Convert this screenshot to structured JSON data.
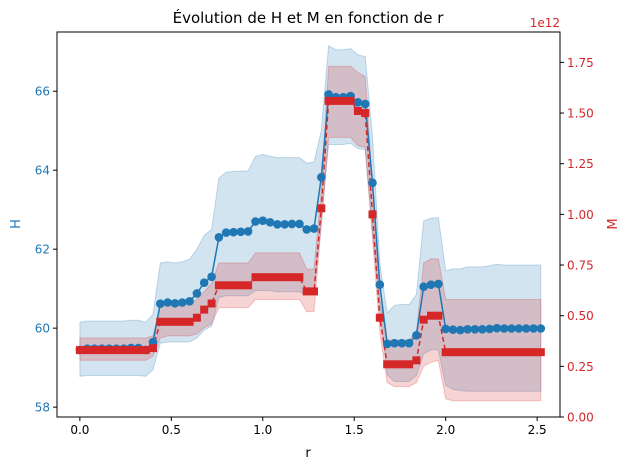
{
  "chart_data": {
    "type": "line",
    "title": "Évolution de H et M en fonction de r",
    "xlabel": "r",
    "xlim": [
      -0.125,
      2.625
    ],
    "xticks": [
      "0.0",
      "0.5",
      "1.0",
      "1.5",
      "2.0",
      "2.5"
    ],
    "xtick_values": [
      0,
      0.5,
      1.0,
      1.5,
      2.0,
      2.5
    ],
    "x": [
      0.0,
      0.04,
      0.08,
      0.12,
      0.16,
      0.2,
      0.24,
      0.28,
      0.32,
      0.36,
      0.4,
      0.44,
      0.48,
      0.52,
      0.56,
      0.6,
      0.64,
      0.68,
      0.72,
      0.76,
      0.8,
      0.84,
      0.88,
      0.92,
      0.96,
      1.0,
      1.04,
      1.08,
      1.12,
      1.16,
      1.2,
      1.24,
      1.28,
      1.32,
      1.36,
      1.4,
      1.44,
      1.48,
      1.52,
      1.56,
      1.6,
      1.64,
      1.68,
      1.72,
      1.76,
      1.8,
      1.84,
      1.88,
      1.92,
      1.96,
      2.0,
      2.04,
      2.08,
      2.12,
      2.16,
      2.2,
      2.24,
      2.28,
      2.32,
      2.36,
      2.4,
      2.44,
      2.48,
      2.52
    ],
    "left_axis": {
      "label": "H",
      "color": "#1f77b4",
      "ylim": [
        57.75,
        67.5
      ],
      "ticks": [
        "58",
        "60",
        "62",
        "64",
        "66"
      ],
      "tick_values": [
        58,
        60,
        62,
        64,
        66
      ]
    },
    "right_axis": {
      "label": "M",
      "color": "#d62728",
      "ylim": [
        0,
        1.9
      ],
      "offset_text": "1e12",
      "ticks": [
        "0.00",
        "0.25",
        "0.50",
        "0.75",
        "1.00",
        "1.25",
        "1.50",
        "1.75"
      ],
      "tick_values": [
        0,
        0.25,
        0.5,
        0.75,
        1.0,
        1.25,
        1.5,
        1.75
      ]
    },
    "series": [
      {
        "axis": "left",
        "color": "#1f77b4",
        "line_style": "solid",
        "marker": "circle",
        "values": [
          59.45,
          59.48,
          59.48,
          59.48,
          59.48,
          59.48,
          59.48,
          59.5,
          59.5,
          59.45,
          59.65,
          60.62,
          60.65,
          60.63,
          60.65,
          60.68,
          60.88,
          61.15,
          61.3,
          62.3,
          62.42,
          62.43,
          62.44,
          62.45,
          62.7,
          62.72,
          62.68,
          62.63,
          62.63,
          62.64,
          62.64,
          62.5,
          62.52,
          63.82,
          65.92,
          65.85,
          65.85,
          65.88,
          65.72,
          65.68,
          63.68,
          61.1,
          59.6,
          59.62,
          59.62,
          59.62,
          59.82,
          61.05,
          61.1,
          61.12,
          59.98,
          59.96,
          59.95,
          59.97,
          59.97,
          59.97,
          59.98,
          60.0,
          59.99,
          59.99,
          59.99,
          59.99,
          59.99,
          59.99
        ],
        "band_lower": [
          58.78,
          58.8,
          58.8,
          58.8,
          58.8,
          58.8,
          58.8,
          58.8,
          58.8,
          58.78,
          58.95,
          59.62,
          59.65,
          59.65,
          59.65,
          59.65,
          59.75,
          59.95,
          60.05,
          60.78,
          60.82,
          60.82,
          60.82,
          60.82,
          60.95,
          60.95,
          60.95,
          60.92,
          60.92,
          60.92,
          60.92,
          60.85,
          60.88,
          62.65,
          64.65,
          64.65,
          64.65,
          64.68,
          64.55,
          64.52,
          62.45,
          60.55,
          58.82,
          58.65,
          58.65,
          58.65,
          58.8,
          59.35,
          59.45,
          59.45,
          58.55,
          58.45,
          58.42,
          58.4,
          58.4,
          58.4,
          58.4,
          58.4,
          58.4,
          58.4,
          58.4,
          58.4,
          58.4,
          58.4
        ],
        "band_upper": [
          60.15,
          60.18,
          60.18,
          60.18,
          60.18,
          60.18,
          60.18,
          60.2,
          60.2,
          60.15,
          60.35,
          61.65,
          61.68,
          61.65,
          61.68,
          61.75,
          62.0,
          62.35,
          62.5,
          63.8,
          63.95,
          63.97,
          63.98,
          63.98,
          64.35,
          64.4,
          64.35,
          64.32,
          64.32,
          64.32,
          64.32,
          64.18,
          64.2,
          65.0,
          67.15,
          67.05,
          67.05,
          67.08,
          66.92,
          66.88,
          64.85,
          61.65,
          60.38,
          60.58,
          60.6,
          60.6,
          60.85,
          62.72,
          62.78,
          62.8,
          61.45,
          61.5,
          61.5,
          61.55,
          61.55,
          61.55,
          61.58,
          61.62,
          61.6,
          61.6,
          61.6,
          61.6,
          61.6,
          61.6
        ]
      },
      {
        "axis": "right",
        "color": "#d62728",
        "line_style": "dashed",
        "marker": "square",
        "values": [
          0.33,
          0.33,
          0.33,
          0.33,
          0.33,
          0.33,
          0.33,
          0.33,
          0.33,
          0.33,
          0.34,
          0.47,
          0.47,
          0.47,
          0.47,
          0.47,
          0.49,
          0.53,
          0.56,
          0.65,
          0.65,
          0.65,
          0.65,
          0.65,
          0.69,
          0.69,
          0.69,
          0.69,
          0.69,
          0.69,
          0.69,
          0.62,
          0.62,
          1.03,
          1.56,
          1.56,
          1.56,
          1.56,
          1.51,
          1.5,
          1.0,
          0.49,
          0.26,
          0.26,
          0.26,
          0.26,
          0.28,
          0.48,
          0.5,
          0.5,
          0.32,
          0.32,
          0.32,
          0.32,
          0.32,
          0.32,
          0.32,
          0.32,
          0.32,
          0.32,
          0.32,
          0.32,
          0.32,
          0.32
        ],
        "band_lower": [
          0.28,
          0.28,
          0.28,
          0.28,
          0.28,
          0.28,
          0.28,
          0.28,
          0.28,
          0.28,
          0.3,
          0.39,
          0.4,
          0.4,
          0.4,
          0.4,
          0.41,
          0.44,
          0.46,
          0.54,
          0.54,
          0.54,
          0.54,
          0.54,
          0.58,
          0.58,
          0.58,
          0.58,
          0.58,
          0.58,
          0.58,
          0.52,
          0.52,
          0.95,
          1.38,
          1.38,
          1.38,
          1.38,
          1.34,
          1.33,
          0.88,
          0.42,
          0.17,
          0.15,
          0.15,
          0.15,
          0.17,
          0.25,
          0.27,
          0.28,
          0.09,
          0.08,
          0.08,
          0.08,
          0.08,
          0.08,
          0.08,
          0.08,
          0.08,
          0.08,
          0.08,
          0.08,
          0.08,
          0.08
        ],
        "band_upper": [
          0.39,
          0.39,
          0.39,
          0.39,
          0.39,
          0.39,
          0.39,
          0.39,
          0.39,
          0.39,
          0.4,
          0.55,
          0.55,
          0.55,
          0.55,
          0.56,
          0.58,
          0.62,
          0.66,
          0.76,
          0.76,
          0.76,
          0.76,
          0.76,
          0.81,
          0.81,
          0.81,
          0.81,
          0.81,
          0.81,
          0.81,
          0.73,
          0.73,
          1.12,
          1.73,
          1.73,
          1.73,
          1.73,
          1.7,
          1.68,
          1.14,
          0.58,
          0.38,
          0.38,
          0.38,
          0.38,
          0.42,
          0.76,
          0.78,
          0.78,
          0.58,
          0.58,
          0.58,
          0.58,
          0.58,
          0.58,
          0.58,
          0.58,
          0.58,
          0.58,
          0.58,
          0.58,
          0.58,
          0.58
        ]
      }
    ],
    "grid": false,
    "legend": "none"
  }
}
